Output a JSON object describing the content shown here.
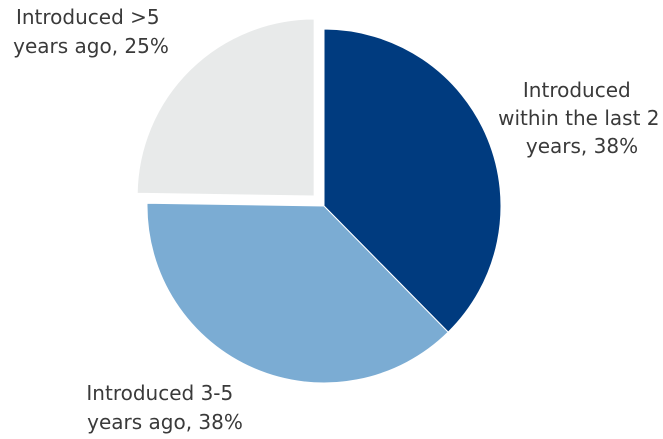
{
  "chart_data": {
    "type": "pie",
    "title": "",
    "slices": [
      {
        "label_lines": [
          "Introduced",
          "within the last 2",
          "years, 38%"
        ],
        "value": 38,
        "color": "#003b7f",
        "exploded": false
      },
      {
        "label_lines": [
          "Introduced 3-5",
          "years ago, 38%"
        ],
        "value": 38,
        "color": "#7bacd3",
        "exploded": false
      },
      {
        "label_lines": [
          "Introduced >5",
          "years ago, 25%"
        ],
        "value": 25,
        "color": "#e8eaea",
        "exploded": true
      }
    ]
  }
}
